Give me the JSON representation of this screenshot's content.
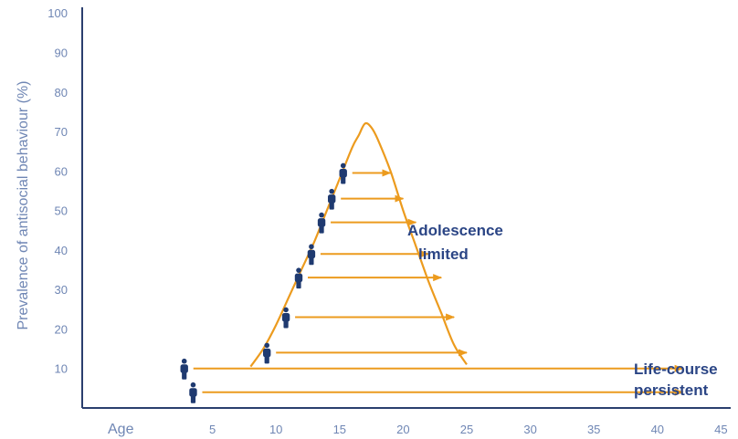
{
  "colors": {
    "axis": "#2b3f6e",
    "tick_text": "#6f86b4",
    "curve": "#ec9b1e",
    "arrow": "#ec9b1e",
    "person": "#1f3a70",
    "annotation": "#2b4585"
  },
  "chart_data": {
    "type": "line",
    "ylabel": "Prevalence of antisocial behaviour (%)",
    "xlabel": "Age",
    "xlim": [
      0,
      45
    ],
    "ylim": [
      0,
      100
    ],
    "x_ticks": [
      "5",
      "10",
      "15",
      "20",
      "25",
      "30",
      "35",
      "40",
      "45"
    ],
    "y_ticks": [
      "10",
      "20",
      "30",
      "40",
      "50",
      "60",
      "70",
      "80",
      "90",
      "100"
    ],
    "curve": {
      "x": [
        8,
        9,
        10,
        11,
        12,
        13,
        14,
        15,
        16,
        16.5,
        17,
        17.5,
        18,
        19,
        20,
        21,
        22,
        23,
        24,
        25
      ],
      "y": [
        10.5,
        15,
        21,
        28,
        35,
        42,
        50,
        58,
        66,
        69,
        72,
        71,
        68,
        60,
        50,
        41,
        32,
        24,
        16,
        11
      ]
    },
    "adolescence_limited_arrows": [
      {
        "x_start": 10,
        "x_end": 25,
        "y": 14
      },
      {
        "x_start": 11.5,
        "x_end": 24,
        "y": 23
      },
      {
        "x_start": 12.5,
        "x_end": 23,
        "y": 33
      },
      {
        "x_start": 13.5,
        "x_end": 22,
        "y": 39
      },
      {
        "x_start": 14.3,
        "x_end": 21,
        "y": 47
      },
      {
        "x_start": 15.1,
        "x_end": 20,
        "y": 53
      },
      {
        "x_start": 16,
        "x_end": 19,
        "y": 59.5
      }
    ],
    "life_course_arrows": [
      {
        "x_start": 3.5,
        "x_end": 42,
        "y": 10
      },
      {
        "x_start": 4.2,
        "x_end": 42,
        "y": 4
      }
    ],
    "annotations": {
      "adolescence_line1": "Adolescence",
      "adolescence_line2": "limited",
      "life_course_line1": "Life-course",
      "life_course_line2": "persistent"
    }
  }
}
